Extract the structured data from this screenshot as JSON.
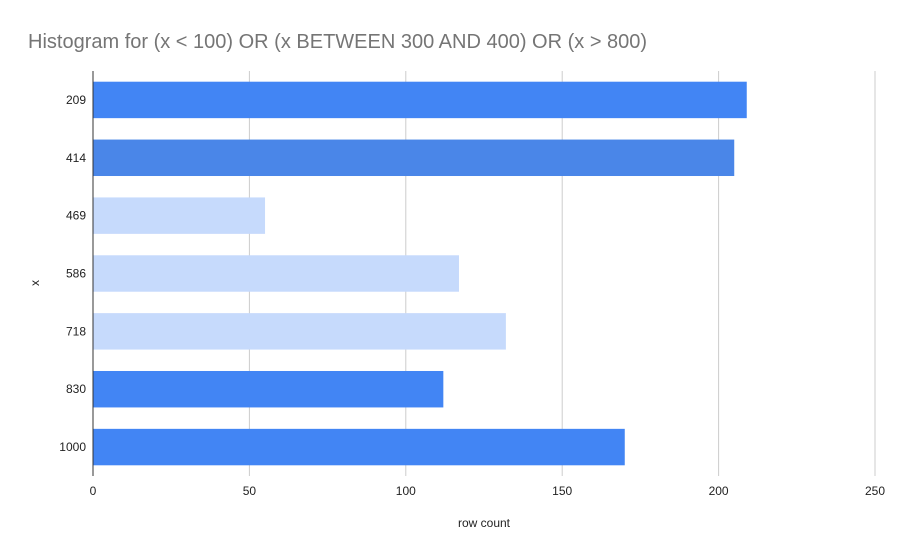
{
  "chart_data": {
    "type": "bar",
    "orientation": "horizontal",
    "title": "Histogram for (x < 100) OR (x BETWEEN 300 AND 400) OR (x > 800)",
    "xlabel": "row count",
    "ylabel": "x",
    "categories": [
      "209",
      "414",
      "469",
      "586",
      "718",
      "830",
      "1000"
    ],
    "values": [
      209,
      205,
      55,
      117,
      132,
      112,
      170
    ],
    "highlighted": [
      true,
      true,
      false,
      false,
      false,
      true,
      true
    ],
    "xlim": [
      0,
      250
    ],
    "x_ticks": [
      0,
      50,
      100,
      150,
      200,
      250
    ],
    "x_tick_labels": [
      "0",
      "50",
      "100",
      "150",
      "200",
      "250"
    ],
    "grid": true,
    "colors": {
      "bar_highlighted": "#4285f4",
      "bar_second": "#4a86e8",
      "bar_muted": "#c6dafc",
      "grid": "#cccccc",
      "axis": "#333333",
      "title": "#757575"
    }
  }
}
